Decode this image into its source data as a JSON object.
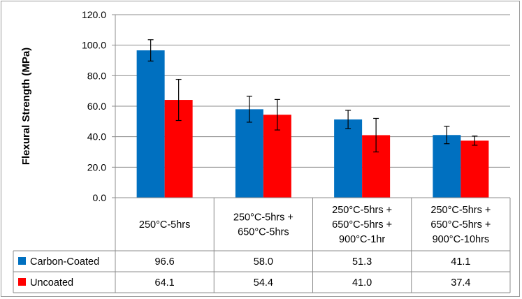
{
  "chart_data": {
    "type": "bar",
    "title": "",
    "xlabel": "",
    "ylabel": "Flexural Strength (MPa)",
    "ylim": [
      0,
      120
    ],
    "yticks": [
      "0.0",
      "20.0",
      "40.0",
      "60.0",
      "80.0",
      "100.0",
      "120.0"
    ],
    "grid": true,
    "legend": "in data table",
    "categories": [
      [
        "250°C-5hrs"
      ],
      [
        "250°C-5hrs +",
        "650°C-5hrs"
      ],
      [
        "250°C-5hrs +",
        "650°C-5hrs +",
        "900°C-1hr"
      ],
      [
        "250°C-5hrs +",
        "650°C-5hrs +",
        "900°C-10hrs"
      ]
    ],
    "series": [
      {
        "name": "Carbon-Coated",
        "color": "#0070C0",
        "values": [
          96.6,
          58.0,
          51.3,
          41.1
        ],
        "labels": [
          "96.6",
          "58.0",
          "51.3",
          "41.1"
        ],
        "errors": [
          7.0,
          8.5,
          6.0,
          5.7
        ]
      },
      {
        "name": "Uncoated",
        "color": "#FF0000",
        "values": [
          64.1,
          54.4,
          41.0,
          37.4
        ],
        "labels": [
          "64.1",
          "54.4",
          "41.0",
          "37.4"
        ],
        "errors": [
          13.5,
          10.0,
          11.0,
          3.0
        ]
      }
    ]
  }
}
